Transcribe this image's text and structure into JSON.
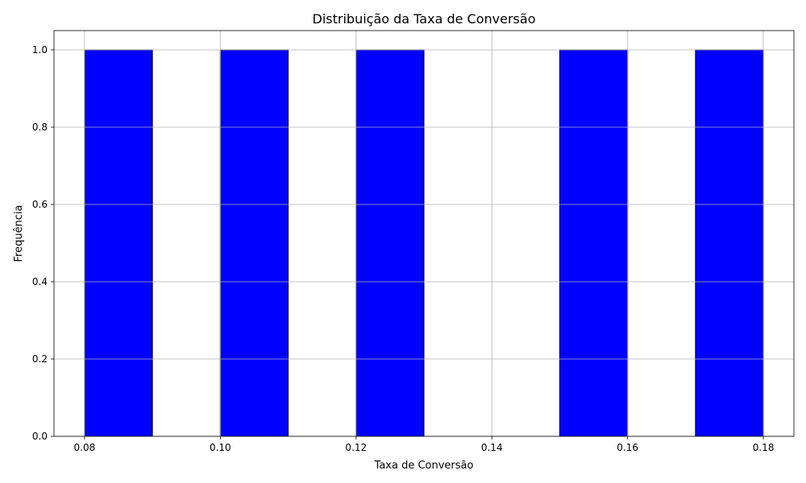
{
  "chart_data": {
    "type": "bar",
    "title": "Distribuição da Taxa de Conversão",
    "xlabel": "Taxa de Conversão",
    "ylabel": "Frequência",
    "xlim": [
      0.0755,
      0.1845
    ],
    "ylim": [
      0,
      1.05
    ],
    "grid": true,
    "bar_color": "#0000ff",
    "edge_color": "#000000",
    "bins": [
      {
        "start": 0.08,
        "end": 0.09,
        "count": 1
      },
      {
        "start": 0.09,
        "end": 0.1,
        "count": 0
      },
      {
        "start": 0.1,
        "end": 0.11,
        "count": 1
      },
      {
        "start": 0.11,
        "end": 0.12,
        "count": 0
      },
      {
        "start": 0.12,
        "end": 0.13,
        "count": 1
      },
      {
        "start": 0.13,
        "end": 0.14,
        "count": 0
      },
      {
        "start": 0.14,
        "end": 0.15,
        "count": 0
      },
      {
        "start": 0.15,
        "end": 0.16,
        "count": 1
      },
      {
        "start": 0.16,
        "end": 0.17,
        "count": 0
      },
      {
        "start": 0.17,
        "end": 0.18,
        "count": 1
      }
    ],
    "x_ticks": [
      0.08,
      0.1,
      0.12,
      0.14,
      0.16,
      0.18
    ],
    "x_tick_labels": [
      "0.08",
      "0.10",
      "0.12",
      "0.14",
      "0.16",
      "0.18"
    ],
    "y_ticks": [
      0.0,
      0.2,
      0.4,
      0.6,
      0.8,
      1.0
    ],
    "y_tick_labels": [
      "0.0",
      "0.2",
      "0.4",
      "0.6",
      "0.8",
      "1.0"
    ]
  }
}
